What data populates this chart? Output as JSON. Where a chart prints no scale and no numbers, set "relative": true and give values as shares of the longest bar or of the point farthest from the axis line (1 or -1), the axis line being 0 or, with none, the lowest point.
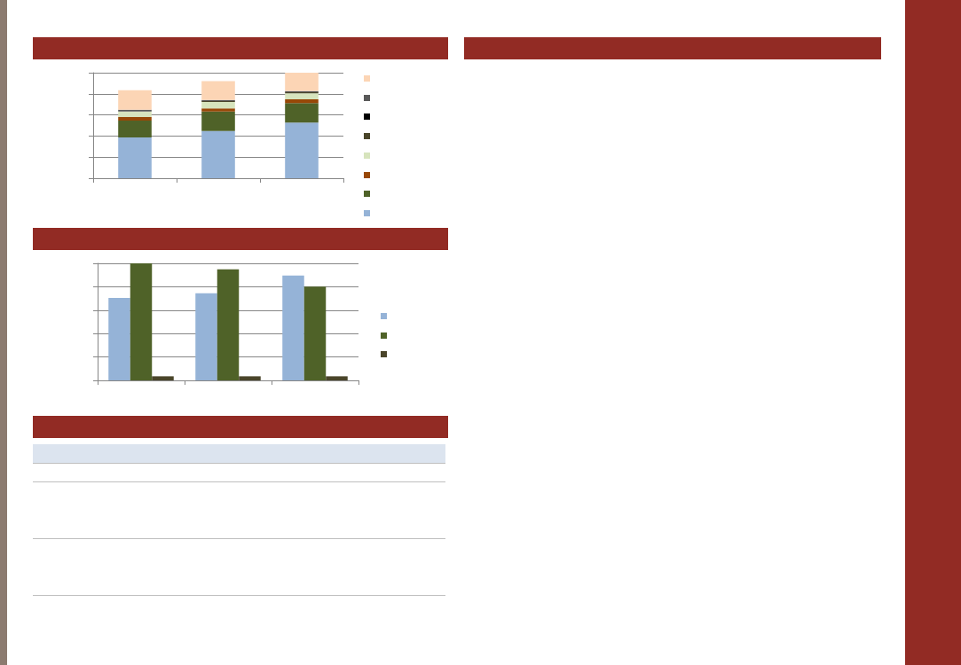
{
  "chart_data": [
    {
      "type": "bar",
      "stacked": true,
      "relative": true,
      "grid": "y",
      "categories": [
        null,
        null,
        null
      ],
      "series": [
        {
          "color": "#95b3d7",
          "values": [
            0.387,
            0.447,
            0.527
          ]
        },
        {
          "color": "#4f6228",
          "values": [
            0.16,
            0.185,
            0.185
          ]
        },
        {
          "color": "#984807",
          "values": [
            0.032,
            0.029,
            0.035
          ]
        },
        {
          "color": "#d7e4bd",
          "values": [
            0.054,
            0.061,
            0.058
          ]
        },
        {
          "color": "#4a452a",
          "values": [
            0,
            0.01,
            0.01
          ]
        },
        {
          "color": "#000000",
          "values": [
            0,
            0,
            0
          ]
        },
        {
          "color": "#595959",
          "values": [
            0.016,
            0.01,
            0.01
          ]
        },
        {
          "color": "#fcd5b5",
          "values": [
            0.185,
            0.179,
            0.175
          ]
        }
      ]
    },
    {
      "type": "bar",
      "relative": true,
      "grid": "y",
      "categories": [
        null,
        null,
        null
      ],
      "series": [
        {
          "color": "#95b3d7",
          "values": [
            0.704,
            0.745,
            0.895
          ]
        },
        {
          "color": "#4f6228",
          "values": [
            1,
            0.949,
            0.801
          ]
        },
        {
          "color": "#4a452a",
          "values": [
            0.035,
            0.035,
            0.035
          ]
        }
      ]
    }
  ]
}
